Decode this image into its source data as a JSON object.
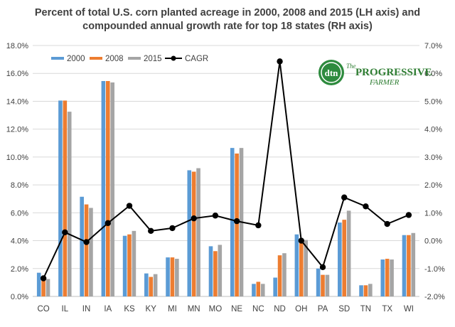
{
  "chart_data": {
    "type": "bar",
    "title_line1": "Percent of total U.S. corn planted acreage in 2000, 2008 and 2015 (LH axis) and",
    "title_line2": "compounded annual growth rate for top 18 states (RH axis)",
    "categories": [
      "CO",
      "IL",
      "IN",
      "IA",
      "KS",
      "KY",
      "MI",
      "MN",
      "MO",
      "NE",
      "NC",
      "ND",
      "OH",
      "PA",
      "SD",
      "TN",
      "TX",
      "WI"
    ],
    "series": [
      {
        "name": "2000",
        "color": "#5b9bd5",
        "axis": "left",
        "values": [
          0.017,
          0.1405,
          0.0715,
          0.1545,
          0.0435,
          0.0165,
          0.028,
          0.0905,
          0.036,
          0.1065,
          0.009,
          0.0135,
          0.0445,
          0.02,
          0.053,
          0.008,
          0.0265,
          0.044
        ]
      },
      {
        "name": "2008",
        "color": "#ed7d31",
        "axis": "left",
        "values": [
          0.014,
          0.1405,
          0.066,
          0.1545,
          0.0445,
          0.014,
          0.028,
          0.0895,
          0.0325,
          0.1025,
          0.0105,
          0.0295,
          0.041,
          0.0155,
          0.055,
          0.008,
          0.027,
          0.044
        ]
      },
      {
        "name": "2015",
        "color": "#a5a5a5",
        "axis": "left",
        "values": [
          0.0125,
          0.1325,
          0.0635,
          0.1535,
          0.047,
          0.016,
          0.027,
          0.092,
          0.037,
          0.1065,
          0.009,
          0.031,
          0.0405,
          0.0155,
          0.0615,
          0.009,
          0.0265,
          0.0455
        ]
      },
      {
        "name": "CAGR",
        "color": "#000000",
        "axis": "right",
        "type": "line",
        "values": [
          -0.0135,
          0.003,
          -0.0005,
          0.0063,
          0.0125,
          0.0035,
          0.0045,
          0.008,
          0.009,
          0.007,
          0.0055,
          0.0643,
          0.0,
          -0.0095,
          0.0155,
          0.0123,
          0.006,
          0.0092
        ]
      }
    ],
    "y_left": {
      "min": 0,
      "max": 0.18,
      "step": 0.02,
      "ticks": [
        "0.0%",
        "2.0%",
        "4.0%",
        "6.0%",
        "8.0%",
        "10.0%",
        "12.0%",
        "14.0%",
        "16.0%",
        "18.0%"
      ]
    },
    "y_right": {
      "min": -0.02,
      "max": 0.07,
      "step": 0.01,
      "ticks": [
        "-2.0%",
        "-1.0%",
        "0.0%",
        "1.0%",
        "2.0%",
        "3.0%",
        "4.0%",
        "5.0%",
        "6.0%",
        "7.0%"
      ]
    },
    "grid": true,
    "legend_position": "top-left"
  },
  "logo": {
    "mark": "dtn",
    "line1": "The",
    "line2": "PROGRESSIVE",
    "line3": "FARMER"
  }
}
